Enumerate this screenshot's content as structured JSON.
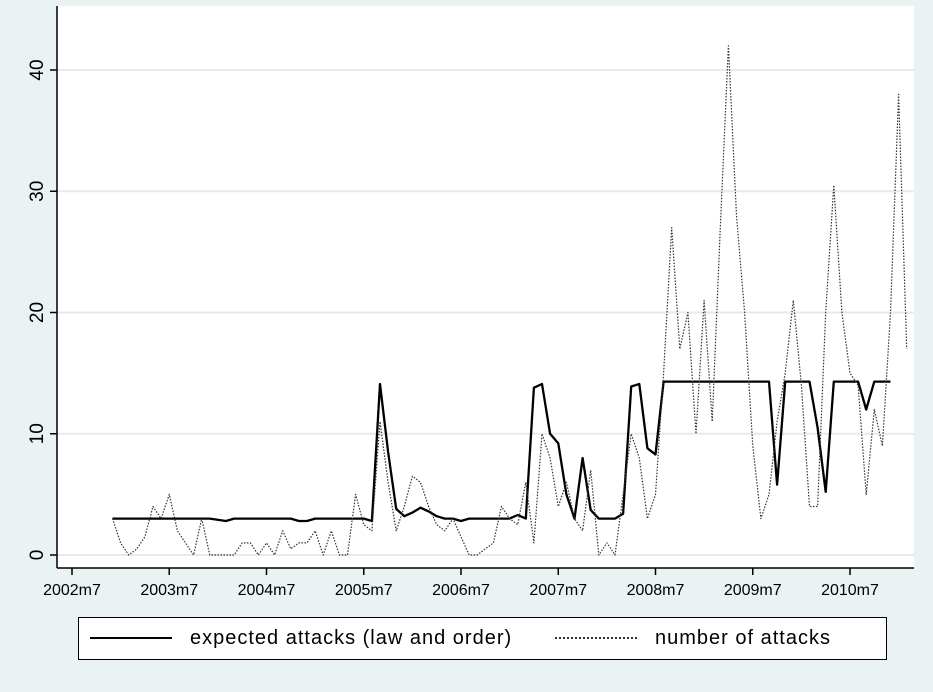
{
  "chart_data": {
    "type": "line",
    "title": "",
    "xlabel": "",
    "ylabel": "",
    "xlim": [
      "2002m1",
      "2010m12"
    ],
    "ylim": [
      0,
      44
    ],
    "x_ticks": [
      "2002m7",
      "2003m7",
      "2004m7",
      "2005m7",
      "2006m7",
      "2007m7",
      "2008m7",
      "2009m7",
      "2010m7"
    ],
    "y_ticks": [
      0,
      10,
      20,
      30,
      40
    ],
    "grid": "horizontal",
    "legend_position": "bottom",
    "colors": {
      "background": "#eaf2f3",
      "plot": "#ffffff",
      "grid": "#e1ecef",
      "series1": "#000000",
      "series2": "#333333"
    },
    "series": [
      {
        "name": "expected attacks (law and order)",
        "style": "solid",
        "points": [
          [
            "2002m12",
            3
          ],
          [
            "2003m12",
            3
          ],
          [
            "2004m2",
            2.8
          ],
          [
            "2004m3",
            3
          ],
          [
            "2004m10",
            3
          ],
          [
            "2004m11",
            2.8
          ],
          [
            "2004m12",
            2.8
          ],
          [
            "2005m1",
            3
          ],
          [
            "2005m7",
            3
          ],
          [
            "2005m8",
            2.8
          ],
          [
            "2005m9",
            14.1
          ],
          [
            "2005m10",
            8.5
          ],
          [
            "2005m11",
            3.8
          ],
          [
            "2005m12",
            3.2
          ],
          [
            "2006m1",
            3.5
          ],
          [
            "2006m2",
            3.9
          ],
          [
            "2006m3",
            3.6
          ],
          [
            "2006m4",
            3.2
          ],
          [
            "2006m5",
            3
          ],
          [
            "2006m6",
            3
          ],
          [
            "2006m7",
            2.8
          ],
          [
            "2006m8",
            3
          ],
          [
            "2007m1",
            3
          ],
          [
            "2007m2",
            3.3
          ],
          [
            "2007m3",
            3
          ],
          [
            "2007m4",
            13.8
          ],
          [
            "2007m5",
            14.1
          ],
          [
            "2007m6",
            10
          ],
          [
            "2007m7",
            9.2
          ],
          [
            "2007m8",
            5
          ],
          [
            "2007m9",
            3
          ],
          [
            "2007m10",
            8
          ],
          [
            "2007m11",
            3.7
          ],
          [
            "2007m12",
            3
          ],
          [
            "2008m2",
            3
          ],
          [
            "2008m3",
            3.4
          ],
          [
            "2008m4",
            13.9
          ],
          [
            "2008m5",
            14.1
          ],
          [
            "2008m6",
            8.8
          ],
          [
            "2008m7",
            8.3
          ],
          [
            "2008m8",
            14.3
          ],
          [
            "2009m9",
            14.3
          ],
          [
            "2009m10",
            5.8
          ],
          [
            "2009m11",
            14.3
          ],
          [
            "2010m2",
            14.3
          ],
          [
            "2010m3",
            10.5
          ],
          [
            "2010m4",
            5.2
          ],
          [
            "2010m5",
            14.3
          ],
          [
            "2010m8",
            14.3
          ],
          [
            "2010m9",
            12
          ],
          [
            "2010m10",
            14.3
          ],
          [
            "2010m12",
            14.3
          ]
        ]
      },
      {
        "name": "number of attacks",
        "style": "dotted",
        "points": [
          [
            "2002m12",
            3
          ],
          [
            "2003m1",
            1
          ],
          [
            "2003m2",
            0
          ],
          [
            "2003m3",
            0.5
          ],
          [
            "2003m4",
            1.5
          ],
          [
            "2003m5",
            4
          ],
          [
            "2003m6",
            3
          ],
          [
            "2003m7",
            5
          ],
          [
            "2003m8",
            2
          ],
          [
            "2003m9",
            1
          ],
          [
            "2003m10",
            0
          ],
          [
            "2003m11",
            3
          ],
          [
            "2003m12",
            0
          ],
          [
            "2004m1",
            0
          ],
          [
            "2004m2",
            0
          ],
          [
            "2004m3",
            0
          ],
          [
            "2004m4",
            1
          ],
          [
            "2004m5",
            1
          ],
          [
            "2004m6",
            0
          ],
          [
            "2004m7",
            1
          ],
          [
            "2004m8",
            0
          ],
          [
            "2004m9",
            2
          ],
          [
            "2004m10",
            0.5
          ],
          [
            "2004m11",
            1
          ],
          [
            "2004m12",
            1
          ],
          [
            "2005m1",
            2
          ],
          [
            "2005m2",
            0
          ],
          [
            "2005m3",
            2
          ],
          [
            "2005m4",
            0
          ],
          [
            "2005m5",
            0
          ],
          [
            "2005m6",
            5
          ],
          [
            "2005m7",
            2.5
          ],
          [
            "2005m8",
            2
          ],
          [
            "2005m9",
            11
          ],
          [
            "2005m10",
            6
          ],
          [
            "2005m11",
            2
          ],
          [
            "2005m12",
            4
          ],
          [
            "2006m1",
            6.5
          ],
          [
            "2006m2",
            6
          ],
          [
            "2006m3",
            4
          ],
          [
            "2006m4",
            2.5
          ],
          [
            "2006m5",
            2
          ],
          [
            "2006m6",
            3
          ],
          [
            "2006m7",
            1.5
          ],
          [
            "2006m8",
            0
          ],
          [
            "2006m9",
            0
          ],
          [
            "2006m10",
            0.5
          ],
          [
            "2006m11",
            1
          ],
          [
            "2006m12",
            4
          ],
          [
            "2007m1",
            3
          ],
          [
            "2007m2",
            2.5
          ],
          [
            "2007m3",
            6
          ],
          [
            "2007m4",
            1
          ],
          [
            "2007m5",
            10
          ],
          [
            "2007m6",
            8
          ],
          [
            "2007m7",
            4
          ],
          [
            "2007m8",
            6
          ],
          [
            "2007m9",
            3
          ],
          [
            "2007m10",
            2
          ],
          [
            "2007m11",
            7
          ],
          [
            "2007m12",
            0
          ],
          [
            "2008m1",
            1
          ],
          [
            "2008m2",
            0
          ],
          [
            "2008m3",
            5
          ],
          [
            "2008m4",
            10
          ],
          [
            "2008m5",
            8
          ],
          [
            "2008m6",
            3
          ],
          [
            "2008m7",
            5
          ],
          [
            "2008m8",
            15
          ],
          [
            "2008m9",
            27
          ],
          [
            "2008m10",
            17
          ],
          [
            "2008m11",
            20
          ],
          [
            "2008m12",
            10
          ],
          [
            "2009m1",
            21
          ],
          [
            "2009m2",
            11
          ],
          [
            "2009m3",
            27
          ],
          [
            "2009m4",
            42
          ],
          [
            "2009m5",
            28
          ],
          [
            "2009m6",
            20
          ],
          [
            "2009m7",
            9
          ],
          [
            "2009m8",
            3
          ],
          [
            "2009m9",
            5
          ],
          [
            "2009m10",
            11
          ],
          [
            "2009m11",
            15
          ],
          [
            "2009m12",
            21
          ],
          [
            "2010m1",
            14
          ],
          [
            "2010m2",
            4
          ],
          [
            "2010m3",
            4
          ],
          [
            "2010m4",
            20
          ],
          [
            "2010m5",
            30.5
          ],
          [
            "2010m6",
            20
          ],
          [
            "2010m7",
            15
          ],
          [
            "2010m8",
            14
          ],
          [
            "2010m9",
            5
          ],
          [
            "2010m10",
            12
          ],
          [
            "2010m11",
            9
          ],
          [
            "2010m12",
            20
          ],
          [
            "2011m1",
            38
          ],
          [
            "2011m2",
            17
          ]
        ]
      }
    ]
  }
}
